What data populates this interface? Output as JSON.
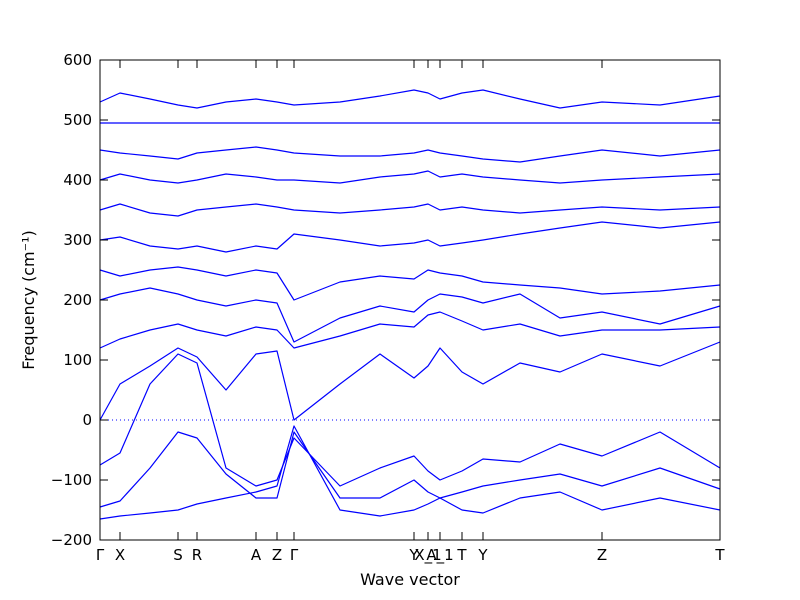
{
  "chart_data": {
    "type": "line",
    "title": "",
    "xlabel": "Wave vector",
    "ylabel": "Frequency (cm⁻¹)",
    "ylim": [
      -200,
      600
    ],
    "yticks": [
      -200,
      -100,
      0,
      100,
      200,
      300,
      400,
      500,
      600
    ],
    "xlim": [
      0,
      620
    ],
    "xticks": [
      {
        "label": "Γ",
        "x": 0
      },
      {
        "label": "X",
        "x": 20
      },
      {
        "label": "S",
        "x": 78
      },
      {
        "label": "R",
        "x": 97
      },
      {
        "label": "A",
        "x": 156
      },
      {
        "label": "Z",
        "x": 177
      },
      {
        "label": "Γ",
        "x": 194
      },
      {
        "label": "Y",
        "x": 314
      },
      {
        "label": "X_1",
        "x": 328
      },
      {
        "label": "A_1",
        "x": 340
      },
      {
        "label": "T",
        "x": 362
      },
      {
        "label": "Y",
        "x": 383
      },
      {
        "label": "Z",
        "x": 502
      },
      {
        "label": "T",
        "x": 620
      }
    ],
    "zero_line": {
      "y": 0,
      "style": "dotted",
      "color": "#0000ff"
    },
    "band_color": "#0000ff",
    "grid": false,
    "series": [
      {
        "x": [
          0,
          20,
          50,
          78,
          97,
          126,
          156,
          177,
          194,
          240,
          280,
          314,
          328,
          340,
          362,
          383,
          420,
          460,
          502,
          560,
          620
        ],
        "y": [
          -165,
          -160,
          -155,
          -150,
          -140,
          -130,
          -120,
          -110,
          -10,
          -150,
          -160,
          -150,
          -140,
          -130,
          -150,
          -155,
          -130,
          -120,
          -150,
          -130,
          -150
        ]
      },
      {
        "x": [
          0,
          20,
          50,
          78,
          97,
          126,
          156,
          177,
          194,
          240,
          280,
          314,
          328,
          340,
          362,
          383,
          420,
          460,
          502,
          560,
          620
        ],
        "y": [
          -145,
          -135,
          -80,
          -20,
          -30,
          -90,
          -130,
          -130,
          -20,
          -130,
          -130,
          -100,
          -120,
          -130,
          -120,
          -110,
          -100,
          -90,
          -110,
          -80,
          -115
        ]
      },
      {
        "x": [
          0,
          20,
          50,
          78,
          97,
          126,
          156,
          177,
          194,
          240,
          280,
          314,
          328,
          340,
          362,
          383,
          420,
          460,
          502,
          560,
          620
        ],
        "y": [
          -75,
          -55,
          60,
          110,
          95,
          -80,
          -110,
          -100,
          -30,
          -110,
          -80,
          -60,
          -85,
          -100,
          -85,
          -65,
          -70,
          -40,
          -60,
          -20,
          -80
        ]
      },
      {
        "x": [
          0,
          20,
          50,
          78,
          97,
          126,
          156,
          177,
          194,
          240,
          280,
          314,
          328,
          340,
          362,
          383,
          420,
          460,
          502,
          560,
          620
        ],
        "y": [
          0,
          60,
          90,
          120,
          105,
          50,
          110,
          115,
          0,
          60,
          110,
          70,
          90,
          120,
          80,
          60,
          95,
          80,
          110,
          90,
          130
        ]
      },
      {
        "x": [
          0,
          20,
          50,
          78,
          97,
          126,
          156,
          177,
          194,
          240,
          280,
          314,
          328,
          340,
          362,
          383,
          420,
          460,
          502,
          560,
          620
        ],
        "y": [
          120,
          135,
          150,
          160,
          150,
          140,
          155,
          150,
          120,
          140,
          160,
          155,
          175,
          180,
          165,
          150,
          160,
          140,
          150,
          150,
          155
        ]
      },
      {
        "x": [
          0,
          20,
          50,
          78,
          97,
          126,
          156,
          177,
          194,
          240,
          280,
          314,
          328,
          340,
          362,
          383,
          420,
          460,
          502,
          560,
          620
        ],
        "y": [
          200,
          210,
          220,
          210,
          200,
          190,
          200,
          195,
          130,
          170,
          190,
          180,
          200,
          210,
          205,
          195,
          210,
          170,
          180,
          160,
          190
        ]
      },
      {
        "x": [
          0,
          20,
          50,
          78,
          97,
          126,
          156,
          177,
          194,
          240,
          280,
          314,
          328,
          340,
          362,
          383,
          420,
          460,
          502,
          560,
          620
        ],
        "y": [
          250,
          240,
          250,
          255,
          250,
          240,
          250,
          245,
          200,
          230,
          240,
          235,
          250,
          245,
          240,
          230,
          225,
          220,
          210,
          215,
          225
        ]
      },
      {
        "x": [
          0,
          20,
          50,
          78,
          97,
          126,
          156,
          177,
          194,
          240,
          280,
          314,
          328,
          340,
          362,
          383,
          420,
          460,
          502,
          560,
          620
        ],
        "y": [
          300,
          305,
          290,
          285,
          290,
          280,
          290,
          285,
          310,
          300,
          290,
          295,
          300,
          290,
          295,
          300,
          310,
          320,
          330,
          320,
          330
        ]
      },
      {
        "x": [
          0,
          20,
          50,
          78,
          97,
          126,
          156,
          177,
          194,
          240,
          280,
          314,
          328,
          340,
          362,
          383,
          420,
          460,
          502,
          560,
          620
        ],
        "y": [
          350,
          360,
          345,
          340,
          350,
          355,
          360,
          355,
          350,
          345,
          350,
          355,
          360,
          350,
          355,
          350,
          345,
          350,
          355,
          350,
          355
        ]
      },
      {
        "x": [
          0,
          20,
          50,
          78,
          97,
          126,
          156,
          177,
          194,
          240,
          280,
          314,
          328,
          340,
          362,
          383,
          420,
          460,
          502,
          560,
          620
        ],
        "y": [
          400,
          410,
          400,
          395,
          400,
          410,
          405,
          400,
          400,
          395,
          405,
          410,
          415,
          405,
          410,
          405,
          400,
          395,
          400,
          405,
          410
        ]
      },
      {
        "x": [
          0,
          20,
          50,
          78,
          97,
          126,
          156,
          177,
          194,
          240,
          280,
          314,
          328,
          340,
          362,
          383,
          420,
          460,
          502,
          560,
          620
        ],
        "y": [
          450,
          445,
          440,
          435,
          445,
          450,
          455,
          450,
          445,
          440,
          440,
          445,
          450,
          445,
          440,
          435,
          430,
          440,
          450,
          440,
          450
        ]
      },
      {
        "x": [
          0,
          20,
          50,
          78,
          97,
          126,
          156,
          177,
          194,
          240,
          280,
          314,
          328,
          340,
          362,
          383,
          420,
          460,
          502,
          560,
          620
        ],
        "y": [
          495,
          495,
          495,
          495,
          495,
          495,
          495,
          495,
          495,
          495,
          495,
          495,
          495,
          495,
          495,
          495,
          495,
          495,
          495,
          495,
          495
        ]
      },
      {
        "x": [
          0,
          20,
          50,
          78,
          97,
          126,
          156,
          177,
          194,
          240,
          280,
          314,
          328,
          340,
          362,
          383,
          420,
          460,
          502,
          560,
          620
        ],
        "y": [
          530,
          545,
          535,
          525,
          520,
          530,
          535,
          530,
          525,
          530,
          540,
          550,
          545,
          535,
          545,
          550,
          535,
          520,
          530,
          525,
          540
        ]
      }
    ]
  }
}
